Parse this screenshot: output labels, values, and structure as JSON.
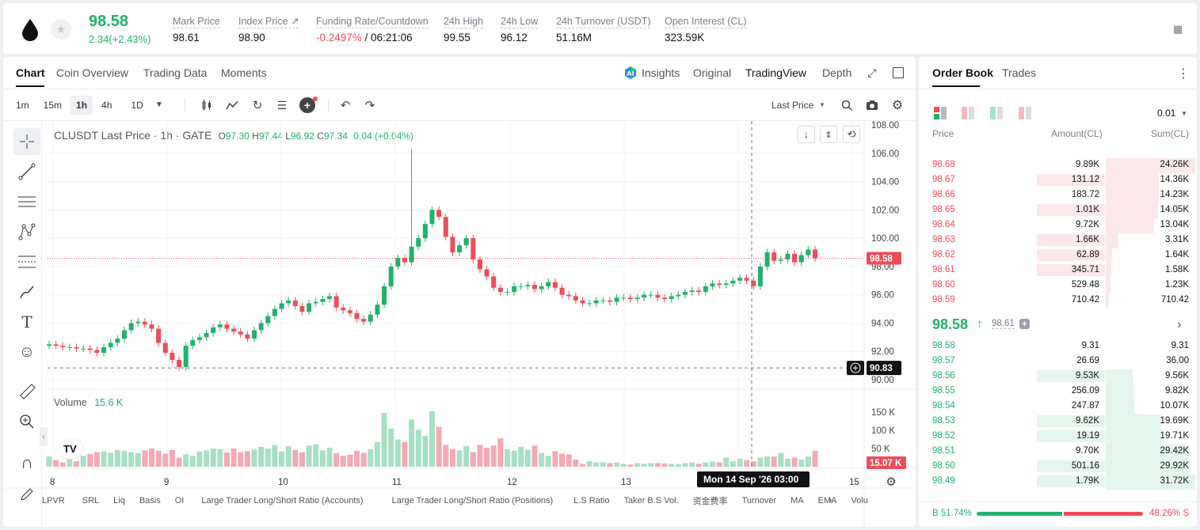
{
  "header": {
    "price": "98.58",
    "change": "2.34(+2.43%)",
    "stats": [
      {
        "label": "Mark Price",
        "value": "98.61"
      },
      {
        "label": "Index Price ↗",
        "value": "98.90"
      },
      {
        "label": "Funding Rate/Countdown",
        "value_red": "-0.2497%",
        "value_rest": " / 06:21:06"
      },
      {
        "label": "24h High",
        "value": "99.55"
      },
      {
        "label": "24h Low",
        "value": "96.12"
      },
      {
        "label": "24h Turnover (USDT)",
        "value": "51.16M"
      },
      {
        "label": "Open Interest (CL)",
        "value": "323.59K"
      }
    ]
  },
  "chart_tabs": [
    "Chart",
    "Coin Overview",
    "Trading Data",
    "Moments"
  ],
  "view_tabs": [
    "Insights",
    "Original",
    "TradingView",
    "Depth"
  ],
  "timeframes": [
    "1m",
    "15m",
    "1h",
    "4h",
    "1D"
  ],
  "price_type": "Last Price",
  "legend": {
    "title": "CLUSDT Last Price · 1h · GATE",
    "o": "O",
    "ov": "97.30",
    "h": "H",
    "hv": "97.44",
    "l": "L",
    "lv": "96.92",
    "c": "C",
    "cv": "97.34",
    "chg": "0.04 (+0.04%)"
  },
  "volume": {
    "label": "Volume",
    "value": "15.6 K"
  },
  "chart_data": {
    "type": "candlestick",
    "title": "CLUSDT Last Price · 1h · GATE",
    "y_ticks": [
      "108.00",
      "106.00",
      "104.00",
      "102.00",
      "100.00",
      "98.00",
      "96.00",
      "94.00",
      "92.00",
      "90.00"
    ],
    "ylim": [
      90,
      108
    ],
    "x_ticks": [
      "8",
      "9",
      "10",
      "11",
      "12",
      "13",
      "14",
      "15"
    ],
    "vol_ticks": [
      "150 K",
      "100 K",
      "50 K"
    ],
    "vol_max": 170,
    "last_price": 98.58,
    "last_price_label": "98.58",
    "crosshair_price": 90.83,
    "crosshair_label": "90.83",
    "crosshair_time": "Mon 14 Sep '26  03:00",
    "last_volume_label": "15.07 K",
    "closes": [
      92.5,
      92.4,
      92.3,
      92.3,
      92.2,
      92.2,
      92.1,
      91.9,
      92.3,
      92.6,
      92.9,
      93.5,
      94.0,
      94.1,
      93.9,
      93.6,
      92.6,
      91.9,
      91.4,
      90.9,
      92.4,
      92.8,
      93.0,
      93.3,
      93.7,
      93.9,
      93.6,
      93.4,
      93.2,
      92.9,
      93.5,
      94.0,
      94.5,
      95.0,
      95.4,
      95.6,
      95.2,
      94.8,
      95.4,
      95.5,
      95.7,
      95.9,
      95.1,
      94.9,
      94.7,
      94.3,
      94.1,
      94.6,
      95.3,
      96.6,
      98.0,
      98.6,
      98.3,
      99.4,
      100.0,
      101.0,
      102.0,
      101.5,
      100.1,
      99.0,
      99.5,
      100.0,
      98.5,
      97.8,
      97.3,
      96.5,
      96.2,
      96.2,
      96.6,
      96.6,
      96.7,
      96.4,
      96.6,
      96.9,
      96.5,
      96.0,
      95.9,
      95.6,
      95.4,
      95.4,
      95.6,
      95.6,
      95.5,
      95.8,
      95.8,
      95.7,
      95.8,
      96.0,
      96.0,
      95.8,
      95.7,
      95.9,
      96.0,
      96.2,
      96.3,
      96.2,
      96.6,
      96.8,
      96.7,
      96.8,
      97.0,
      97.2,
      97.0,
      96.6,
      98.0,
      99.0,
      98.4,
      98.5,
      98.9,
      98.3,
      98.8,
      99.2,
      98.58
    ],
    "spikes": [
      [
        53,
        106.3
      ]
    ],
    "volumes": [
      28,
      18,
      12,
      22,
      15,
      30,
      35,
      40,
      42,
      38,
      46,
      44,
      40,
      38,
      45,
      50,
      44,
      36,
      46,
      25,
      34,
      30,
      42,
      45,
      50,
      48,
      39,
      50,
      40,
      43,
      47,
      55,
      50,
      60,
      42,
      56,
      46,
      40,
      58,
      62,
      45,
      52,
      37,
      30,
      33,
      44,
      38,
      48,
      68,
      148,
      105,
      75,
      68,
      130,
      102,
      85,
      153,
      110,
      60,
      48,
      45,
      57,
      40,
      60,
      52,
      58,
      78,
      48,
      44,
      55,
      47,
      58,
      38,
      30,
      43,
      36,
      34,
      20,
      8,
      15,
      12,
      12,
      10,
      12,
      8,
      6,
      10,
      8,
      10,
      10,
      9,
      8,
      7,
      10,
      12,
      8,
      12,
      14,
      12,
      25,
      15,
      22,
      18,
      15,
      25,
      28,
      28,
      38,
      22,
      25,
      20,
      28,
      44,
      22,
      15
    ]
  },
  "indicators": [
    "LPVR",
    "SRL",
    "Liq",
    "Basis",
    "OI",
    "Large Trader Long/Short Ratio (Accounts)",
    "Large Trader Long/Short Ratio (Positions)",
    "L.S Ratio",
    "Taker B.S Vol.",
    "资金费率",
    "Turnover",
    "MA",
    "EMA",
    "Volu"
  ],
  "orderbook": {
    "tabs": [
      "Order Book",
      "Trades"
    ],
    "precision": "0.01",
    "cols": [
      "Price",
      "Amount(CL)",
      "Sum(CL)"
    ],
    "asks": [
      [
        "98.68",
        "9.89K",
        "24.26K"
      ],
      [
        "98.67",
        "131.12",
        "14.36K"
      ],
      [
        "98.66",
        "183.72",
        "14.23K"
      ],
      [
        "98.65",
        "1.01K",
        "14.05K"
      ],
      [
        "98.64",
        "9.72K",
        "13.04K"
      ],
      [
        "98.63",
        "1.66K",
        "3.31K"
      ],
      [
        "98.62",
        "62.89",
        "1.64K"
      ],
      [
        "98.61",
        "345.71",
        "1.58K"
      ],
      [
        "98.60",
        "529.48",
        "1.23K"
      ],
      [
        "98.59",
        "710.42",
        "710.42"
      ]
    ],
    "ask_amount_bars": [
      0,
      0.77,
      0,
      0.77,
      0,
      0.77,
      0.77,
      0.77,
      0,
      0
    ],
    "ask_sum_bars": [
      1,
      0.59,
      0.59,
      0.58,
      0.54,
      0.14,
      0.07,
      0.065,
      0.05,
      0.03
    ],
    "mid_price": "98.58",
    "mark": "98.61",
    "bids": [
      [
        "98.58",
        "9.31",
        "9.31"
      ],
      [
        "98.57",
        "26.69",
        "36.00"
      ],
      [
        "98.56",
        "9.53K",
        "9.56K"
      ],
      [
        "98.55",
        "256.09",
        "9.82K"
      ],
      [
        "98.54",
        "247.87",
        "10.07K"
      ],
      [
        "98.53",
        "9.62K",
        "19.69K"
      ],
      [
        "98.52",
        "19.19",
        "19.71K"
      ],
      [
        "98.51",
        "9.70K",
        "29.42K"
      ],
      [
        "98.50",
        "501.16",
        "29.92K"
      ],
      [
        "98.49",
        "1.79K",
        "31.72K"
      ]
    ],
    "bid_amount_bars": [
      0,
      0,
      0.77,
      0,
      0,
      0.77,
      0.77,
      0,
      0.77,
      0.77
    ],
    "bid_sum_bars": [
      0,
      0,
      0.3,
      0.31,
      0.32,
      0.62,
      0.62,
      0.93,
      0.94,
      1
    ],
    "ratio_buy": "B 51.74%",
    "ratio_sell": "48.26% S",
    "buy_fraction": 0.5174
  }
}
